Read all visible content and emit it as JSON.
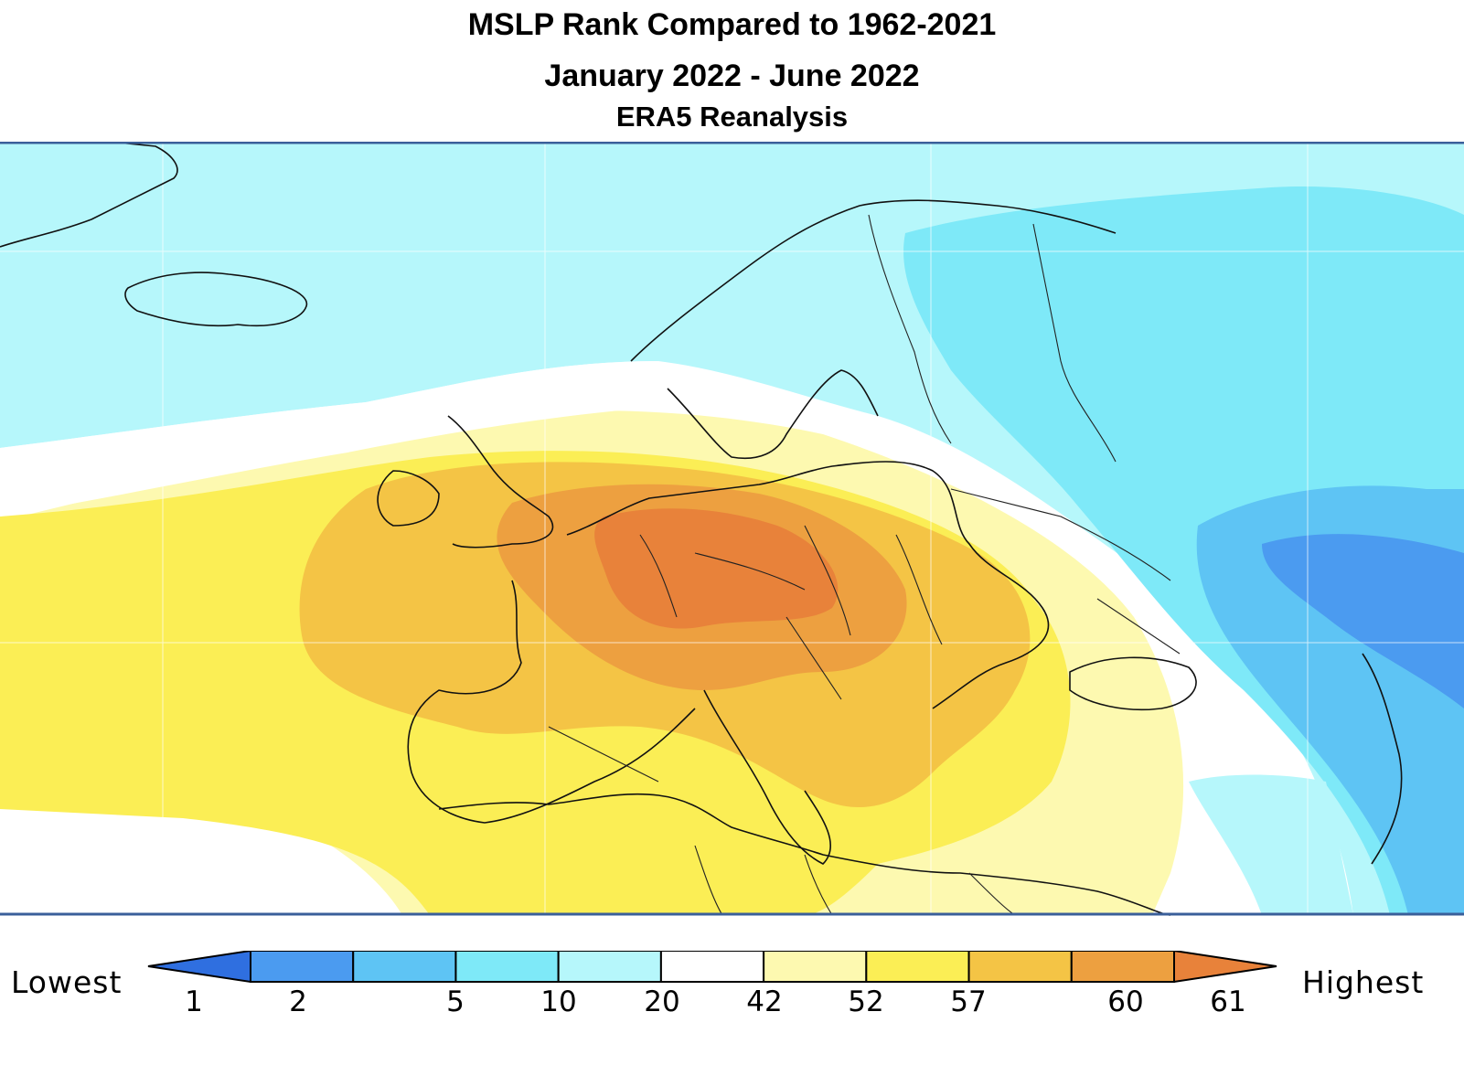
{
  "header": {
    "title": "MSLP Rank Compared to 1962-2021",
    "period": "January 2022 - June 2022",
    "source": "ERA5 Reanalysis"
  },
  "legend": {
    "low_label": "Lowest",
    "high_label": "Highest",
    "ticks": [
      "1",
      "2",
      "5",
      "10",
      "20",
      "42",
      "52",
      "57",
      "60",
      "61"
    ],
    "bins": [
      {
        "name": "rank-1-2",
        "color": "#2f6fe0"
      },
      {
        "name": "rank-2-5",
        "color": "#4b9bf0"
      },
      {
        "name": "rank-5-10",
        "color": "#5ec4f4"
      },
      {
        "name": "rank-10-20",
        "color": "#7ee9f8"
      },
      {
        "name": "rank-20-42",
        "color": "#b6f7fb"
      },
      {
        "name": "rank-42-52",
        "color": "#ffffff"
      },
      {
        "name": "rank-52-57",
        "color": "#fdf9b0"
      },
      {
        "name": "rank-57-60",
        "color": "#fbee55"
      },
      {
        "name": "rank-60-61",
        "color": "#f4c445"
      },
      {
        "name": "rank-61-highest",
        "color": "#eda040"
      },
      {
        "name": "rank-highest",
        "color": "#e8823a"
      }
    ]
  },
  "map": {
    "region": "Europe",
    "colors": {
      "border": "#3a5f9a",
      "coast": "#111111",
      "grid": "#ffffff"
    }
  }
}
